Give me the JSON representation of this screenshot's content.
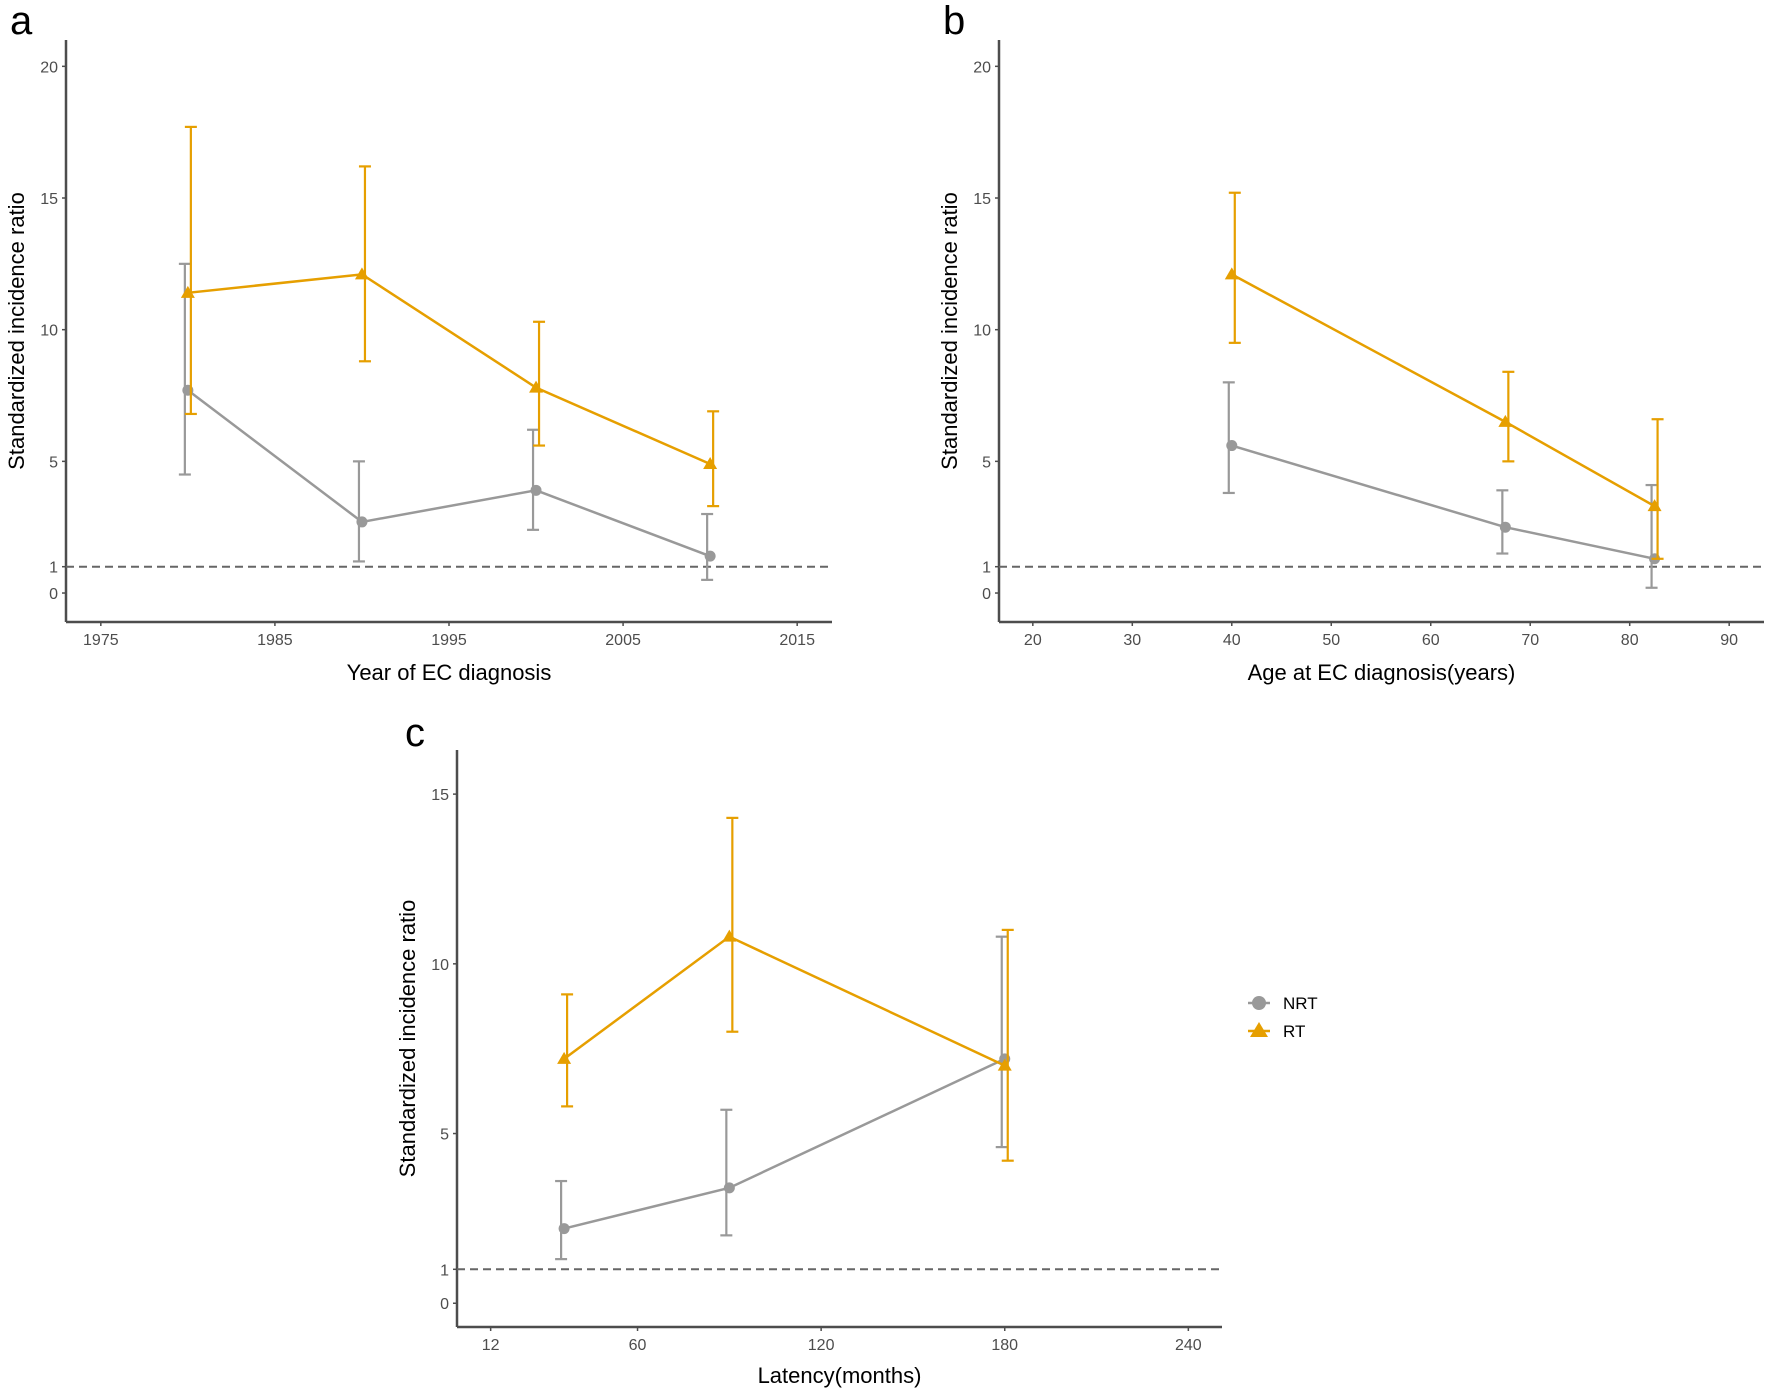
{
  "colors": {
    "NRT": "#999999",
    "RT": "#E69F00",
    "axis": "#4d4d4d",
    "refline": "#666666"
  },
  "legend": {
    "entries": [
      {
        "name": "NRT",
        "shape": "circle"
      },
      {
        "name": "RT",
        "shape": "triangle"
      }
    ]
  },
  "chart_data": [
    {
      "panel": "a",
      "type": "line",
      "title": "",
      "xlabel": "Year of EC diagnosis",
      "ylabel": "Standardized incidence ratio",
      "xlim": [
        1973,
        2017
      ],
      "ylim": [
        -1.1,
        21
      ],
      "x_ticks": [
        1975,
        1985,
        1995,
        2005,
        2015
      ],
      "y_ticks": [
        0,
        1,
        5,
        10,
        15,
        20
      ],
      "reference_line": 1,
      "grid": false,
      "series": [
        {
          "name": "NRT",
          "marker": "circle",
          "x": [
            1980,
            1990,
            2000,
            2010
          ],
          "y": [
            7.7,
            2.7,
            3.9,
            1.4
          ],
          "lower": [
            4.5,
            1.2,
            2.4,
            0.5
          ],
          "upper": [
            12.5,
            5.0,
            6.2,
            3.0
          ]
        },
        {
          "name": "RT",
          "marker": "triangle",
          "x": [
            1980,
            1990,
            2000,
            2010
          ],
          "y": [
            11.4,
            12.1,
            7.8,
            4.9
          ],
          "lower": [
            6.8,
            8.8,
            5.6,
            3.3
          ],
          "upper": [
            17.7,
            16.2,
            10.3,
            6.9
          ]
        }
      ]
    },
    {
      "panel": "b",
      "type": "line",
      "title": "",
      "xlabel": "Age at EC diagnosis(years)",
      "ylabel": "Standardized incidence ratio",
      "xlim": [
        16.6,
        93.5
      ],
      "ylim": [
        -1.1,
        21
      ],
      "x_ticks": [
        20,
        30,
        40,
        50,
        60,
        70,
        80,
        90
      ],
      "y_ticks": [
        0,
        1,
        5,
        10,
        15,
        20
      ],
      "reference_line": 1,
      "grid": false,
      "series": [
        {
          "name": "NRT",
          "marker": "circle",
          "x": [
            40,
            67.5,
            82.5
          ],
          "y": [
            5.6,
            2.5,
            1.3
          ],
          "lower": [
            3.8,
            1.5,
            0.2
          ],
          "upper": [
            8.0,
            3.9,
            4.1
          ]
        },
        {
          "name": "RT",
          "marker": "triangle",
          "x": [
            40,
            67.5,
            82.5
          ],
          "y": [
            12.1,
            6.5,
            3.3
          ],
          "lower": [
            9.5,
            5.0,
            1.3
          ],
          "upper": [
            15.2,
            8.4,
            6.6
          ]
        }
      ]
    },
    {
      "panel": "c",
      "type": "line",
      "title": "",
      "xlabel": "Latency(months)",
      "ylabel": "Standardized incidence ratio",
      "xlim": [
        1,
        251
      ],
      "ylim": [
        -0.7,
        16.3
      ],
      "x_ticks": [
        12,
        60,
        120,
        180,
        240
      ],
      "y_ticks": [
        0,
        1,
        5,
        10,
        15
      ],
      "reference_line": 1,
      "grid": false,
      "legend_position": "right",
      "series": [
        {
          "name": "NRT",
          "marker": "circle",
          "x": [
            36,
            90,
            180
          ],
          "y": [
            2.2,
            3.4,
            7.2
          ],
          "lower": [
            1.3,
            2.0,
            4.6
          ],
          "upper": [
            3.6,
            5.7,
            10.8
          ]
        },
        {
          "name": "RT",
          "marker": "triangle",
          "x": [
            36,
            90,
            180
          ],
          "y": [
            7.2,
            10.8,
            7.0
          ],
          "lower": [
            5.8,
            8.0,
            4.2
          ],
          "upper": [
            9.1,
            14.3,
            11.0
          ]
        }
      ]
    }
  ]
}
